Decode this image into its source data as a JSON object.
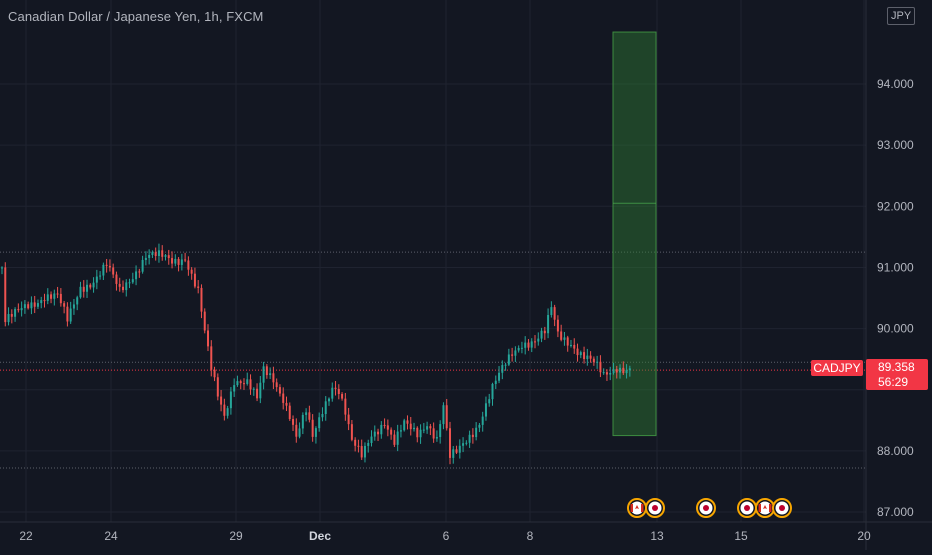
{
  "header": {
    "title": "Canadian Dollar / Japanese Yen, 1h, FXCM",
    "currency": "JPY"
  },
  "price_axis": {
    "labels": [
      "94.000",
      "93.000",
      "92.000",
      "91.000",
      "90.000",
      "88.000",
      "87.000"
    ]
  },
  "time_axis": {
    "labels": [
      "22",
      "24",
      "29",
      "Dec",
      "6",
      "8",
      "13",
      "15",
      "20"
    ]
  },
  "last_price": {
    "symbol": "CADJPY",
    "price": "89.358",
    "countdown": "56:29"
  },
  "colors": {
    "background": "#131722",
    "up": "#26a69a",
    "down": "#ef5350",
    "zone": "#2e7d32",
    "price_tag": "#f23645"
  },
  "chart_data": {
    "type": "candlestick",
    "title": "Canadian Dollar / Japanese Yen, 1h, FXCM",
    "ylim": [
      86.9,
      95.4
    ],
    "yticks": [
      87,
      88,
      89,
      90,
      91,
      92,
      93,
      94
    ],
    "xticks": [
      "22",
      "24",
      "29",
      "Dec",
      "6",
      "8",
      "13",
      "15",
      "20"
    ],
    "horizontal_levels": [
      91.25,
      89.45,
      89.32,
      87.72
    ],
    "price_path": [
      {
        "t": 0,
        "p": 91.0
      },
      {
        "t": 1,
        "p": 90.1
      },
      {
        "t": 4,
        "p": 90.2
      },
      {
        "t": 8,
        "p": 90.4
      },
      {
        "t": 13,
        "p": 90.55
      },
      {
        "t": 17,
        "p": 90.5
      },
      {
        "t": 20,
        "p": 90.1
      },
      {
        "t": 24,
        "p": 90.7
      },
      {
        "t": 28,
        "p": 90.8
      },
      {
        "t": 32,
        "p": 91.0
      },
      {
        "t": 36,
        "p": 90.6
      },
      {
        "t": 40,
        "p": 90.9
      },
      {
        "t": 44,
        "p": 91.2
      },
      {
        "t": 52,
        "p": 91.1
      },
      {
        "t": 56,
        "p": 91.2
      },
      {
        "t": 60,
        "p": 90.6
      },
      {
        "t": 62,
        "p": 89.9
      },
      {
        "t": 64,
        "p": 89.3
      },
      {
        "t": 66,
        "p": 88.9
      },
      {
        "t": 68,
        "p": 88.6
      },
      {
        "t": 71,
        "p": 89.2
      },
      {
        "t": 75,
        "p": 89.1
      },
      {
        "t": 78,
        "p": 88.8
      },
      {
        "t": 80,
        "p": 89.3
      },
      {
        "t": 83,
        "p": 89.2
      },
      {
        "t": 86,
        "p": 88.9
      },
      {
        "t": 88,
        "p": 88.6
      },
      {
        "t": 90,
        "p": 88.2
      },
      {
        "t": 93,
        "p": 88.6
      },
      {
        "t": 95,
        "p": 88.2
      },
      {
        "t": 98,
        "p": 88.7
      },
      {
        "t": 101,
        "p": 89.1
      },
      {
        "t": 103,
        "p": 89.0
      },
      {
        "t": 105,
        "p": 88.6
      },
      {
        "t": 107,
        "p": 88.1
      },
      {
        "t": 110,
        "p": 87.9
      },
      {
        "t": 113,
        "p": 88.3
      },
      {
        "t": 117,
        "p": 88.5
      },
      {
        "t": 120,
        "p": 88.1
      },
      {
        "t": 123,
        "p": 88.4
      },
      {
        "t": 127,
        "p": 88.3
      },
      {
        "t": 130,
        "p": 88.5
      },
      {
        "t": 133,
        "p": 88.2
      },
      {
        "t": 135,
        "p": 88.7
      },
      {
        "t": 137,
        "p": 87.85
      },
      {
        "t": 139,
        "p": 87.95
      },
      {
        "t": 142,
        "p": 88.2
      },
      {
        "t": 146,
        "p": 88.5
      },
      {
        "t": 150,
        "p": 89.0
      },
      {
        "t": 153,
        "p": 89.3
      },
      {
        "t": 156,
        "p": 89.6
      },
      {
        "t": 159,
        "p": 89.8
      },
      {
        "t": 163,
        "p": 89.8
      },
      {
        "t": 166,
        "p": 89.9
      },
      {
        "t": 168,
        "p": 90.3
      },
      {
        "t": 170,
        "p": 89.9
      },
      {
        "t": 174,
        "p": 89.8
      },
      {
        "t": 177,
        "p": 89.6
      },
      {
        "t": 181,
        "p": 89.4
      },
      {
        "t": 184,
        "p": 89.2
      },
      {
        "t": 188,
        "p": 89.4
      },
      {
        "t": 192,
        "p": 89.36
      }
    ],
    "candle_count": 192,
    "zone": {
      "top": 94.85,
      "bottom": 88.25,
      "split": 92.05
    },
    "events": [
      {
        "flag": "ca"
      },
      {
        "flag": "jp"
      },
      {
        "flag": "jp"
      },
      {
        "flag": "jp"
      },
      {
        "flag": "ca"
      },
      {
        "flag": "jp"
      }
    ]
  }
}
